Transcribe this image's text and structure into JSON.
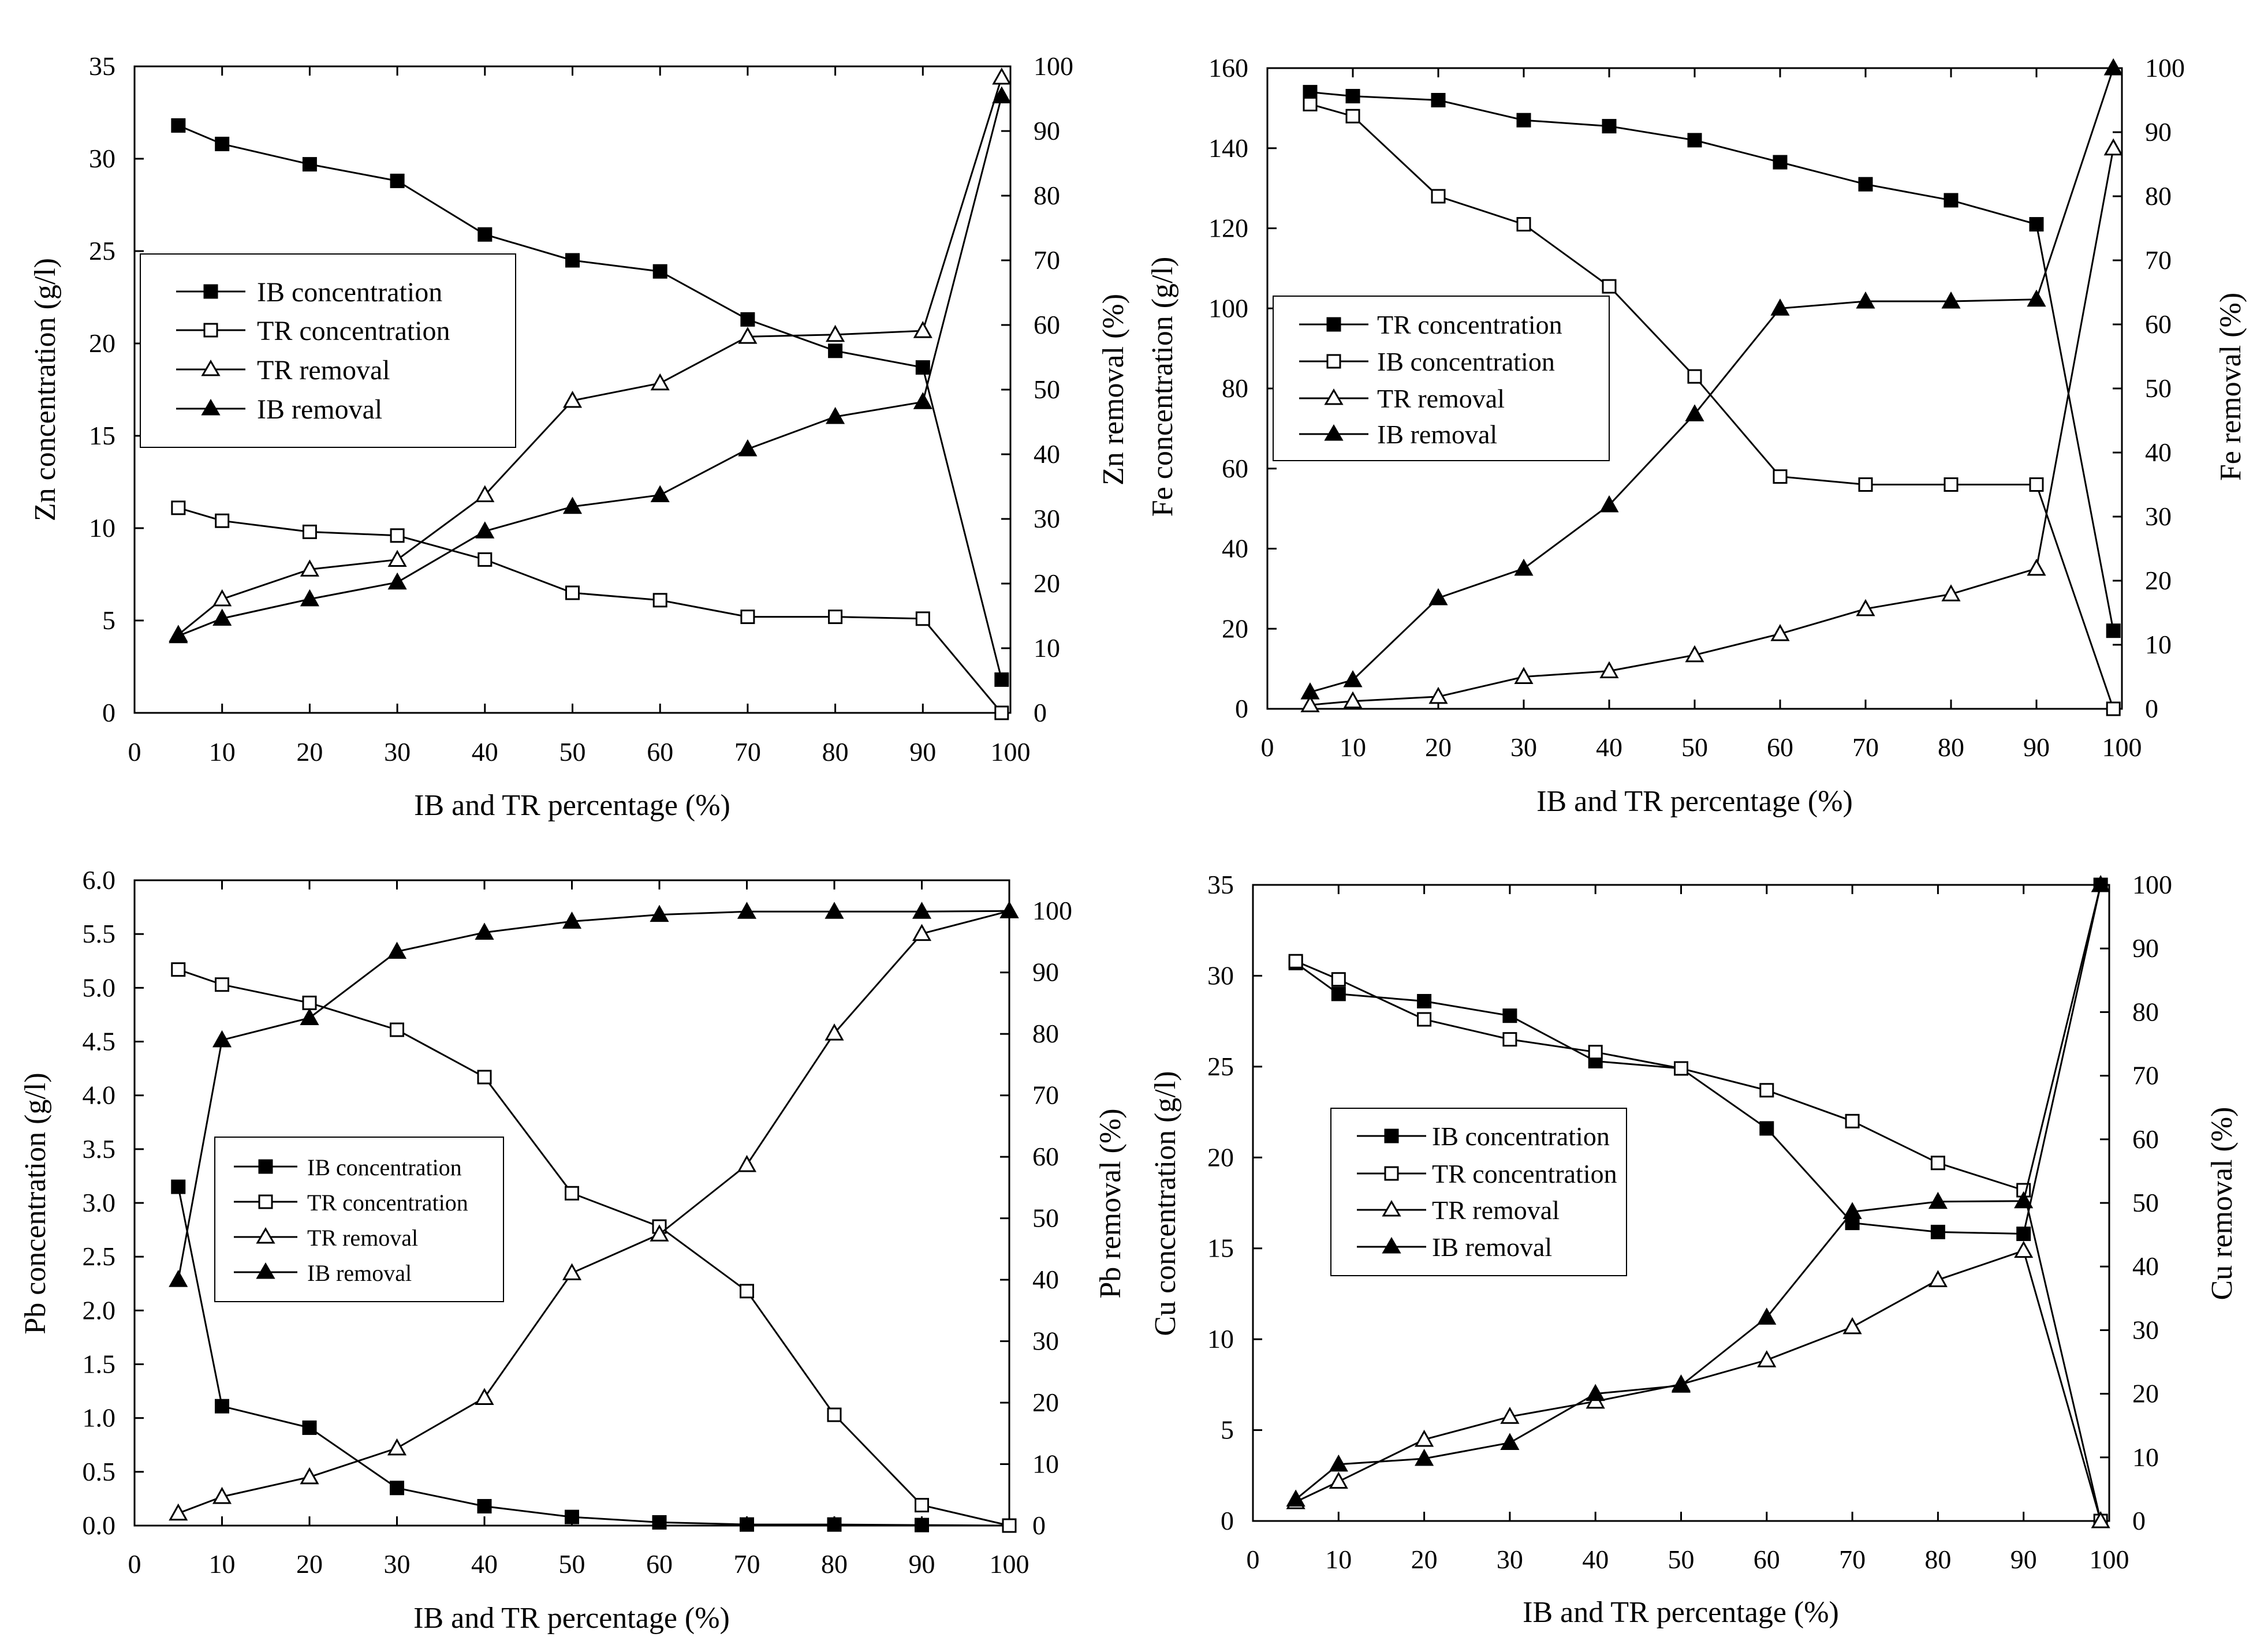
{
  "figure": {
    "panels_count": 4
  },
  "chart_data": [
    {
      "id": "zn",
      "type": "line",
      "xlabel": "IB and TR percentage (%)",
      "ylabel_left": "Zn concentration (g/l)",
      "ylabel_right": "Zn removal (%)",
      "x_ticks": [
        "0",
        "10",
        "20",
        "30",
        "40",
        "50",
        "60",
        "70",
        "80",
        "90",
        "100"
      ],
      "y_left_ticks": [
        "0",
        "5",
        "10",
        "15",
        "20",
        "25",
        "30",
        "35"
      ],
      "y_right_ticks": [
        "0",
        "10",
        "20",
        "30",
        "40",
        "50",
        "60",
        "70",
        "80",
        "90",
        "100"
      ],
      "xlim": [
        0,
        100
      ],
      "ylim_left": [
        0,
        35
      ],
      "ylim_right": [
        0,
        100
      ],
      "legend_position": "center-left",
      "series": [
        {
          "name": "IB concentration",
          "axis": "left",
          "marker": "square-filled",
          "x": [
            5,
            10,
            20,
            30,
            40,
            50,
            60,
            70,
            80,
            90,
            99
          ],
          "values": [
            31.8,
            30.8,
            29.7,
            28.8,
            25.9,
            24.5,
            23.9,
            21.3,
            19.6,
            18.7,
            1.8
          ]
        },
        {
          "name": "TR concentration",
          "axis": "left",
          "marker": "square-open",
          "x": [
            5,
            10,
            20,
            30,
            40,
            50,
            60,
            70,
            80,
            90,
            99
          ],
          "values": [
            11.1,
            10.4,
            9.8,
            9.6,
            8.3,
            6.5,
            6.1,
            5.2,
            5.2,
            5.1,
            0.0
          ]
        },
        {
          "name": "TR removal",
          "axis": "right",
          "marker": "triangle-open",
          "x": [
            5,
            10,
            20,
            30,
            40,
            50,
            60,
            70,
            80,
            90,
            99
          ],
          "values": [
            12.1,
            17.6,
            22.2,
            23.7,
            33.7,
            48.3,
            51.0,
            58.2,
            58.5,
            59.1,
            98.3
          ]
        },
        {
          "name": "IB removal",
          "axis": "right",
          "marker": "triangle-filled",
          "x": [
            5,
            10,
            20,
            30,
            40,
            50,
            60,
            70,
            80,
            90,
            99
          ],
          "values": [
            11.9,
            14.6,
            17.6,
            20.2,
            28.1,
            31.9,
            33.7,
            40.8,
            45.8,
            48.1,
            95.4
          ]
        }
      ]
    },
    {
      "id": "fe",
      "type": "line",
      "xlabel": "IB and TR percentage (%)",
      "ylabel_left": "Fe concentration (g/l)",
      "ylabel_right": "Fe removal (%)",
      "x_ticks": [
        "0",
        "10",
        "20",
        "30",
        "40",
        "50",
        "60",
        "70",
        "80",
        "90",
        "100"
      ],
      "y_left_ticks": [
        "0",
        "20",
        "40",
        "60",
        "80",
        "100",
        "120",
        "140",
        "160"
      ],
      "y_right_ticks": [
        "0",
        "10",
        "20",
        "30",
        "40",
        "50",
        "60",
        "70",
        "80",
        "90",
        "100"
      ],
      "xlim": [
        0,
        100
      ],
      "ylim_left": [
        0,
        160
      ],
      "ylim_right": [
        0,
        100
      ],
      "legend_position": "center-left",
      "series": [
        {
          "name": "TR concentration",
          "axis": "left",
          "marker": "square-filled",
          "x": [
            5,
            10,
            20,
            30,
            40,
            50,
            60,
            70,
            80,
            90,
            99
          ],
          "values": [
            154,
            153,
            152,
            147,
            145.5,
            142,
            136.5,
            131,
            127,
            121,
            19.5
          ]
        },
        {
          "name": "IB concentration",
          "axis": "left",
          "marker": "square-open",
          "x": [
            5,
            10,
            20,
            30,
            40,
            50,
            60,
            70,
            80,
            90,
            99
          ],
          "values": [
            151,
            148,
            128,
            121,
            105.5,
            83,
            58,
            56,
            56,
            56,
            0
          ]
        },
        {
          "name": "TR removal",
          "axis": "right",
          "marker": "triangle-open",
          "x": [
            5,
            10,
            20,
            30,
            40,
            50,
            60,
            70,
            80,
            90,
            99
          ],
          "values": [
            0.6,
            1.2,
            1.9,
            5.0,
            5.9,
            8.4,
            11.7,
            15.6,
            17.9,
            21.9,
            87.5
          ]
        },
        {
          "name": "IB removal",
          "axis": "right",
          "marker": "triangle-filled",
          "x": [
            5,
            10,
            20,
            30,
            40,
            50,
            60,
            70,
            80,
            90,
            99
          ],
          "values": [
            2.6,
            4.5,
            17.3,
            21.9,
            31.8,
            46.0,
            62.5,
            63.6,
            63.6,
            63.9,
            100
          ]
        }
      ]
    },
    {
      "id": "pb",
      "type": "line",
      "xlabel": "IB and TR percentage (%)",
      "ylabel_left": "Pb concentration (g/l)",
      "ylabel_right": "Pb removal (%)",
      "x_ticks": [
        "0",
        "10",
        "20",
        "30",
        "40",
        "50",
        "60",
        "70",
        "80",
        "90",
        "100"
      ],
      "y_left_ticks": [
        "0.0",
        "0.5",
        "1.0",
        "1.5",
        "2.0",
        "2.5",
        "3.0",
        "3.5",
        "4.0",
        "4.5",
        "5.0",
        "5.5",
        "6.0"
      ],
      "y_right_ticks": [
        "0",
        "10",
        "20",
        "30",
        "40",
        "50",
        "60",
        "70",
        "80",
        "90",
        "100"
      ],
      "xlim": [
        0,
        100
      ],
      "ylim_left": [
        0,
        6
      ],
      "ylim_right": [
        0,
        105
      ],
      "legend_position": "center-left",
      "series": [
        {
          "name": "IB concentration",
          "axis": "left",
          "marker": "square-filled",
          "x": [
            5,
            10,
            20,
            30,
            40,
            50,
            60,
            70,
            80,
            90,
            100
          ],
          "values": [
            3.15,
            1.11,
            0.91,
            0.35,
            0.18,
            0.08,
            0.03,
            0.01,
            0.01,
            0.005,
            0.0
          ]
        },
        {
          "name": "TR concentration",
          "axis": "left",
          "marker": "square-open",
          "x": [
            5,
            10,
            20,
            30,
            40,
            50,
            60,
            70,
            80,
            90,
            100
          ],
          "values": [
            5.17,
            5.03,
            4.86,
            4.61,
            4.17,
            3.09,
            2.78,
            2.18,
            1.03,
            0.19,
            0.0
          ]
        },
        {
          "name": "TR removal",
          "axis": "right",
          "marker": "triangle-open",
          "x": [
            5,
            10,
            20,
            30,
            40,
            50,
            60,
            70,
            80,
            90,
            100
          ],
          "values": [
            2,
            4.7,
            7.9,
            12.6,
            20.8,
            41.1,
            47.4,
            58.7,
            80.1,
            96.3,
            100
          ]
        },
        {
          "name": "IB removal",
          "axis": "right",
          "marker": "triangle-filled",
          "x": [
            5,
            10,
            20,
            30,
            40,
            50,
            60,
            70,
            80,
            90,
            100
          ],
          "values": [
            40,
            79,
            82.6,
            93.4,
            96.5,
            98.3,
            99.4,
            99.9,
            99.9,
            99.9,
            100
          ]
        }
      ]
    },
    {
      "id": "cu",
      "type": "line",
      "xlabel": "IB and TR percentage (%)",
      "ylabel_left": "Cu concentration (g/l)",
      "ylabel_right": "Cu removal (%)",
      "x_ticks": [
        "0",
        "10",
        "20",
        "30",
        "40",
        "50",
        "60",
        "70",
        "80",
        "90",
        "100"
      ],
      "y_left_ticks": [
        "0",
        "5",
        "10",
        "15",
        "20",
        "25",
        "30",
        "35"
      ],
      "y_right_ticks": [
        "0",
        "10",
        "20",
        "30",
        "40",
        "50",
        "60",
        "70",
        "80",
        "90",
        "100"
      ],
      "xlim": [
        0,
        100
      ],
      "ylim_left": [
        0,
        35
      ],
      "ylim_right": [
        0,
        100
      ],
      "legend_position": "center-left",
      "series": [
        {
          "name": "IB concentration",
          "axis": "left",
          "marker": "square-filled",
          "x": [
            5,
            10,
            20,
            30,
            40,
            50,
            60,
            70,
            80,
            90,
            99
          ],
          "values": [
            30.7,
            29.0,
            28.6,
            27.8,
            25.3,
            24.9,
            21.6,
            16.4,
            15.9,
            15.8,
            35.0
          ]
        },
        {
          "name": "TR concentration",
          "axis": "left",
          "marker": "square-open",
          "x": [
            5,
            10,
            20,
            30,
            40,
            50,
            60,
            70,
            80,
            90,
            99
          ],
          "values": [
            30.8,
            29.8,
            27.6,
            26.5,
            25.8,
            24.9,
            23.7,
            22.0,
            19.7,
            18.2,
            0.0
          ]
        },
        {
          "name": "TR removal",
          "axis": "right",
          "marker": "triangle-open",
          "x": [
            5,
            10,
            20,
            30,
            40,
            50,
            60,
            70,
            80,
            90,
            99
          ],
          "values": [
            3.0,
            6.2,
            12.8,
            16.4,
            18.8,
            21.5,
            25.3,
            30.5,
            37.9,
            42.5,
            0.0
          ]
        },
        {
          "name": "IB removal",
          "axis": "right",
          "marker": "triangle-filled",
          "x": [
            5,
            10,
            20,
            30,
            40,
            50,
            60,
            70,
            80,
            90,
            99
          ],
          "values": [
            3.4,
            8.9,
            9.8,
            12.3,
            20.0,
            21.3,
            32.0,
            48.6,
            50.2,
            50.3,
            100
          ]
        }
      ]
    }
  ]
}
